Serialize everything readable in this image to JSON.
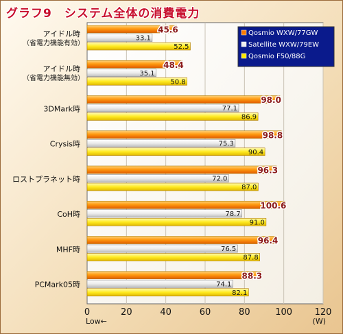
{
  "title": "グラフ9　システム全体の消費電力",
  "chart_data": {
    "type": "bar",
    "orientation": "horizontal",
    "categories": [
      [
        "アイドル時",
        "（省電力機能有効）"
      ],
      [
        "アイドル時",
        "（省電力機能無効）"
      ],
      [
        "3DMark時"
      ],
      [
        "Crysis時"
      ],
      [
        "ロストプラネット時"
      ],
      [
        "CoH時"
      ],
      [
        "MHF時"
      ],
      [
        "PCMark05時"
      ]
    ],
    "series": [
      {
        "name": "Qosmio WXW/77GW",
        "values": [
          45.6,
          48.4,
          98.0,
          98.8,
          96.3,
          100.6,
          96.4,
          88.3
        ],
        "color": "#ff7a00"
      },
      {
        "name": "Satellite WXW/79EW",
        "values": [
          33.1,
          35.1,
          77.1,
          75.3,
          72.0,
          78.7,
          76.5,
          74.1
        ],
        "color": "#e6e6e6"
      },
      {
        "name": "Qosmio F50/88G",
        "values": [
          52.5,
          50.8,
          86.9,
          90.4,
          87.0,
          91.0,
          87.8,
          82.1
        ],
        "color": "#ffe600"
      }
    ],
    "value_labels": [
      [
        "45.6",
        "48.4",
        "98.0",
        "98.8",
        "96.3",
        "100.6",
        "96.4",
        "88.3"
      ],
      [
        "33.1",
        "35.1",
        "77.1",
        "75.3",
        "72.0",
        "78.7",
        "76.5",
        "74.1"
      ],
      [
        "52.5",
        "50.8",
        "86.9",
        "90.4",
        "87.0",
        "91.0",
        "87.8",
        "82.1"
      ]
    ],
    "xlim": [
      0,
      120
    ],
    "xticks": [
      "0",
      "20",
      "40",
      "60",
      "80",
      "100",
      "120"
    ],
    "x_annotation": "Low←",
    "unit": "(W)",
    "grid": true,
    "legend_position": "top-right"
  }
}
